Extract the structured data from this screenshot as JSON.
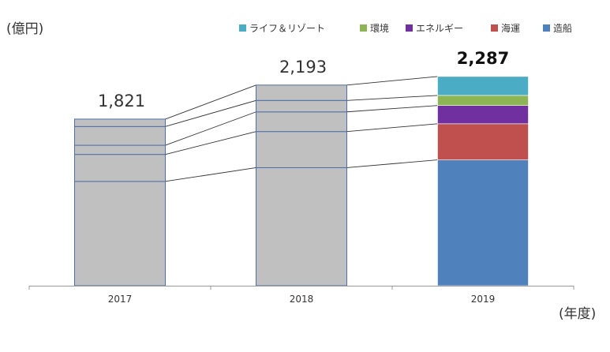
{
  "chart_data": {
    "type": "bar",
    "stacked": true,
    "title": "",
    "ylabel": "(億円)",
    "xlabel": "(年度)",
    "categories": [
      "2017",
      "2018",
      "2019"
    ],
    "totals": [
      1821,
      2193,
      2287
    ],
    "total_labels": [
      "1,821",
      "2,193",
      "2,287"
    ],
    "ylim": [
      0,
      2450
    ],
    "grid": false,
    "legend_position": "top-right",
    "segment_order_bottom_to_top": [
      "造船",
      "海運",
      "エネルギー",
      "環境",
      "ライフ＆リゾート"
    ],
    "series": [
      {
        "name": "造船",
        "color": "#4F81BD",
        "values": [
          1140,
          1290,
          1375
        ]
      },
      {
        "name": "海運",
        "color": "#C0504D",
        "values": [
          295,
          395,
          395
        ]
      },
      {
        "name": "エネルギー",
        "color": "#7030A0",
        "values": [
          100,
          215,
          200
        ]
      },
      {
        "name": "環境",
        "color": "#8DB555",
        "values": [
          205,
          125,
          110
        ]
      },
      {
        "name": "ライフ＆リゾート",
        "color": "#4BACC6",
        "values": [
          81,
          168,
          207
        ]
      }
    ],
    "legend_order": [
      "ライフ＆リゾート",
      "環境",
      "エネルギー",
      "海運",
      "造船"
    ],
    "inactive_color": "#C0C0C0",
    "inactive_stroke": "#4F6FA8",
    "highlight_category": "2019"
  }
}
